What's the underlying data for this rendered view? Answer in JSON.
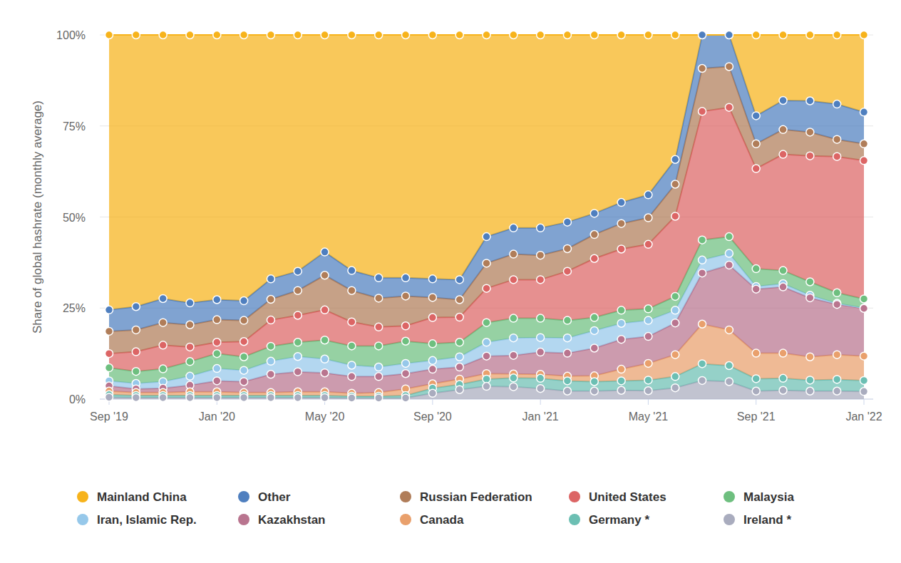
{
  "chart_data": {
    "type": "area",
    "stacked": true,
    "grid": true,
    "legend": "bottom",
    "marker": "circle",
    "y_label": "Share of global hashrate (monthly average)",
    "categories": [
      "Sep '19",
      null,
      null,
      null,
      "Jan '20",
      null,
      null,
      null,
      "May '20",
      null,
      null,
      null,
      "Sep '20",
      null,
      null,
      null,
      "Jan '21",
      null,
      null,
      null,
      "May '21",
      null,
      null,
      null,
      "Sep '21",
      null,
      null,
      null,
      "Jan '22"
    ],
    "ylim": [
      0,
      100
    ],
    "yticks": [
      {
        "value": 0,
        "label": "0%"
      },
      {
        "value": 25,
        "label": "25%"
      },
      {
        "value": 50,
        "label": "50%"
      },
      {
        "value": 75,
        "label": "75%"
      },
      {
        "value": 100,
        "label": "100%"
      }
    ],
    "series": [
      {
        "name": "Mainland China",
        "color": "#f7b31b",
        "values": [
          75.5,
          74.6,
          72.4,
          73.6,
          72.7,
          73.0,
          67.0,
          64.9,
          59.6,
          64.7,
          66.7,
          66.7,
          67.0,
          67.2,
          55.4,
          53.0,
          53.0,
          51.4,
          49.0,
          46.0,
          43.9,
          34.2,
          0,
          0,
          22.2,
          18.0,
          18.1,
          19.0,
          21.2
        ]
      },
      {
        "name": "Other",
        "color": "#4f7fbf",
        "values": [
          5.9,
          6.4,
          6.6,
          6.0,
          5.5,
          5.4,
          5.6,
          5.3,
          6.4,
          5.5,
          5.6,
          5.0,
          5.1,
          5.5,
          7.3,
          7.2,
          7.5,
          7.3,
          5.8,
          5.8,
          6.3,
          6.8,
          9.2,
          8.7,
          7.7,
          8.0,
          8.6,
          9.7,
          8.7
        ]
      },
      {
        "name": "Russian Federation",
        "color": "#b07d59",
        "values": [
          6.1,
          6.0,
          6.2,
          6.1,
          6.2,
          5.8,
          5.7,
          6.8,
          9.5,
          8.6,
          7.9,
          8.2,
          5.5,
          4.8,
          6.9,
          7.0,
          6.7,
          6.2,
          6.6,
          7.0,
          7.3,
          8.8,
          11.8,
          11.2,
          6.8,
          6.8,
          6.5,
          4.7,
          4.6
        ]
      },
      {
        "name": "United States",
        "color": "#dc6565",
        "values": [
          3.9,
          5.4,
          6.5,
          4.0,
          3.1,
          4.2,
          7.2,
          7.4,
          8.3,
          6.6,
          5.2,
          4.2,
          7.2,
          6.9,
          9.4,
          10.6,
          10.6,
          13.5,
          16.2,
          16.8,
          17.7,
          22.0,
          35.3,
          35.5,
          27.5,
          31.9,
          34.6,
          37.4,
          38.0
        ]
      },
      {
        "name": "Malaysia",
        "color": "#6ebf7f",
        "values": [
          3.6,
          3.3,
          3.5,
          4.0,
          4.1,
          3.7,
          4.1,
          3.9,
          5.2,
          5.3,
          5.8,
          6.1,
          4.6,
          4.0,
          5.4,
          5.4,
          5.3,
          4.8,
          3.6,
          3.6,
          3.2,
          3.8,
          5.5,
          4.6,
          4.9,
          3.6,
          3.7,
          2.9,
          2.5
        ]
      },
      {
        "name": "Iran, Islamic Rep.",
        "color": "#96c8ea",
        "values": [
          1.4,
          1.5,
          1.8,
          2.5,
          3.4,
          3.1,
          3.6,
          4.2,
          3.8,
          3.1,
          2.6,
          2.8,
          2.4,
          2.8,
          3.8,
          4.8,
          4.0,
          4.2,
          4.8,
          4.4,
          4.4,
          3.5,
          3.6,
          3.2,
          0.7,
          0.9,
          0.7,
          0.3,
          0.1
        ]
      },
      {
        "name": "Kazakhstan",
        "color": "#b9758f",
        "values": [
          1.4,
          1.0,
          1.2,
          1.8,
          3.0,
          3.0,
          5.0,
          5.5,
          5.2,
          4.6,
          4.4,
          4.2,
          4.0,
          3.3,
          4.8,
          5.1,
          6.1,
          6.3,
          7.6,
          8.2,
          7.4,
          8.7,
          14.0,
          17.8,
          17.6,
          18.2,
          16.2,
          13.8,
          13.1
        ]
      },
      {
        "name": "Canada",
        "color": "#e9a06c",
        "values": [
          1.0,
          0.8,
          0.8,
          1.0,
          1.0,
          0.8,
          0.8,
          1.0,
          1.0,
          0.8,
          1.0,
          1.8,
          1.2,
          1.5,
          1.5,
          1.1,
          1.1,
          1.3,
          1.6,
          3.2,
          4.6,
          6.0,
          10.9,
          9.8,
          7.0,
          6.9,
          6.4,
          6.8,
          6.7
        ]
      },
      {
        "name": "Germany *",
        "color": "#6cbfb3",
        "values": [
          0.7,
          0.6,
          0.6,
          0.6,
          0.6,
          0.6,
          0.6,
          0.6,
          0.6,
          0.5,
          0.5,
          0.7,
          1.4,
          1.4,
          2.0,
          2.4,
          2.8,
          2.8,
          2.6,
          2.6,
          2.9,
          3.1,
          4.6,
          4.4,
          3.4,
          3.3,
          3.0,
          3.2,
          3.0
        ]
      },
      {
        "name": "Ireland *",
        "color": "#a9acbe",
        "values": [
          0.5,
          0.4,
          0.4,
          0.4,
          0.4,
          0.4,
          0.4,
          0.4,
          0.4,
          0.3,
          0.3,
          0.3,
          1.6,
          2.6,
          3.5,
          3.4,
          2.9,
          2.2,
          2.2,
          2.4,
          2.3,
          3.1,
          5.1,
          4.8,
          2.2,
          2.4,
          2.2,
          2.2,
          2.1
        ]
      }
    ]
  }
}
